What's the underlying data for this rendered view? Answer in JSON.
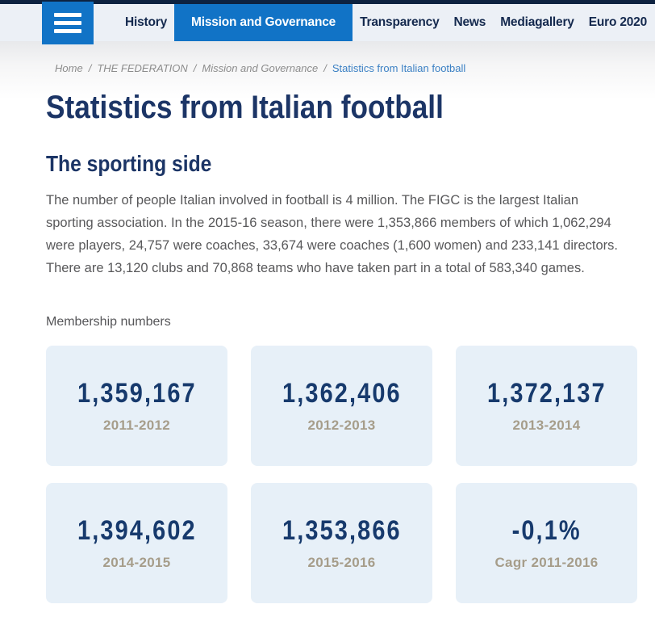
{
  "colors": {
    "accent": "#1173c6",
    "navy": "#1c3566",
    "topstrip": "#0d2240",
    "navbar-bg": "#ecf0f6",
    "card-bg": "#e7f0f8",
    "value-color": "#173a6d",
    "period-color": "#a69d8a",
    "breadcrumb-link": "#8c8c8c",
    "breadcrumb-current": "#3b80c4",
    "body-text": "#58585a"
  },
  "nav": {
    "hamburger_icon": "menu-icon",
    "items": [
      {
        "label": "History",
        "active": false
      },
      {
        "label": "Mission and Governance",
        "active": true
      },
      {
        "label": "Transparency",
        "active": false
      },
      {
        "label": "News",
        "active": false
      },
      {
        "label": "Mediagallery",
        "active": false
      },
      {
        "label": "Euro 2020",
        "active": false
      }
    ]
  },
  "breadcrumb": {
    "separator": "/",
    "links": [
      "Home",
      "THE FEDERATION",
      "Mission and Governance"
    ],
    "current": "Statistics from Italian football"
  },
  "page": {
    "title": "Statistics from Italian football"
  },
  "section": {
    "heading": "The sporting side",
    "paragraph": "The number of people Italian involved in football is 4 million. The FIGC is the largest Italian sporting association. In the 2015-16 season, there were 1,353,866 members of which 1,062,294 were players, 24,757 were coaches, 33,674 were coaches (1,600 women) and 233,141 directors. There are 13,120 clubs and 70,868 teams who have taken part in a total of 583,340 games."
  },
  "membership": {
    "label": "Membership numbers",
    "cards": [
      {
        "value": "1,359,167",
        "period": "2011-2012"
      },
      {
        "value": "1,362,406",
        "period": "2012-2013"
      },
      {
        "value": "1,372,137",
        "period": "2013-2014"
      },
      {
        "value": "1,394,602",
        "period": "2014-2015"
      },
      {
        "value": "1,353,866",
        "period": "2015-2016"
      },
      {
        "value": "-0,1%",
        "period": "Cagr 2011-2016"
      }
    ]
  }
}
